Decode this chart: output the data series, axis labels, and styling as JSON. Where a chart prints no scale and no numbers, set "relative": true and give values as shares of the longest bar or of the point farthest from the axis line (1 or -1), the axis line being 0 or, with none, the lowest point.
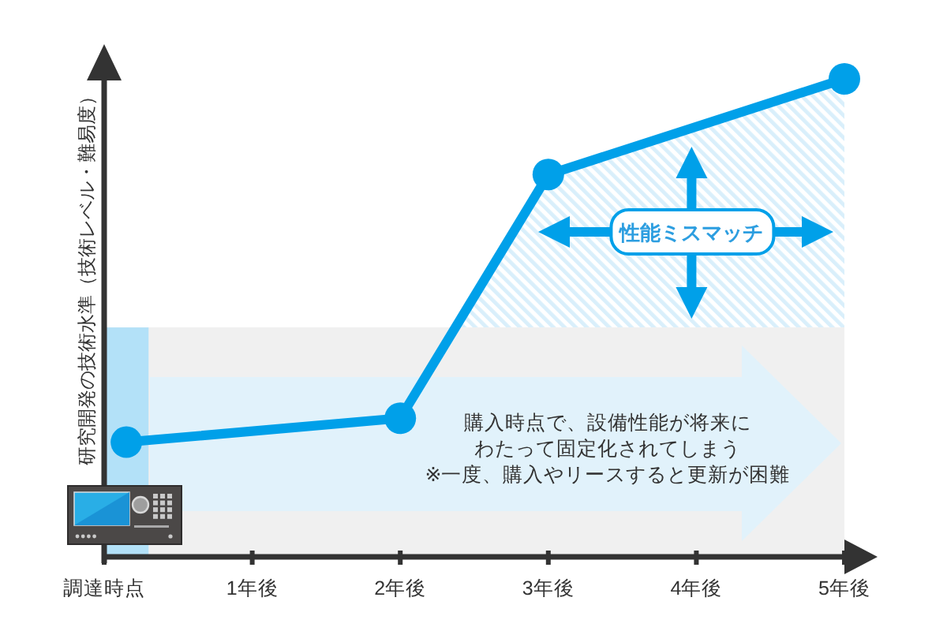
{
  "chart_data": {
    "type": "line",
    "ylabel": "研究開発の技術水準（技術レベル・難易度）",
    "relative": true,
    "xlim": [
      0,
      5
    ],
    "xticks": [
      {
        "value": 0,
        "label": "調達時点"
      },
      {
        "value": 1,
        "label": "1年後"
      },
      {
        "value": 2,
        "label": "2年後"
      },
      {
        "value": 3,
        "label": "3年後"
      },
      {
        "value": 4,
        "label": "4年後"
      },
      {
        "value": 5,
        "label": "5年後"
      }
    ],
    "tick_labels": "x",
    "marker": "circle",
    "series": [
      {
        "color": "#00a0e9",
        "x": [
          0.15,
          2,
          3,
          5
        ],
        "values": [
          0.24,
          0.29,
          0.8,
          1
        ]
      }
    ],
    "bands": [
      {
        "axis": "y",
        "from": 0,
        "to": 0.48,
        "color": "#f0f0f0"
      },
      {
        "axis": "x",
        "from": 0,
        "to": 0.3,
        "color": "#b3e1f8"
      }
    ],
    "annotations": [
      "性能ミスマッチ",
      "購入時点で、設備性能が将来にわたって固定化されてしまう",
      "※一度、購入やリースすると更新が困難"
    ]
  }
}
